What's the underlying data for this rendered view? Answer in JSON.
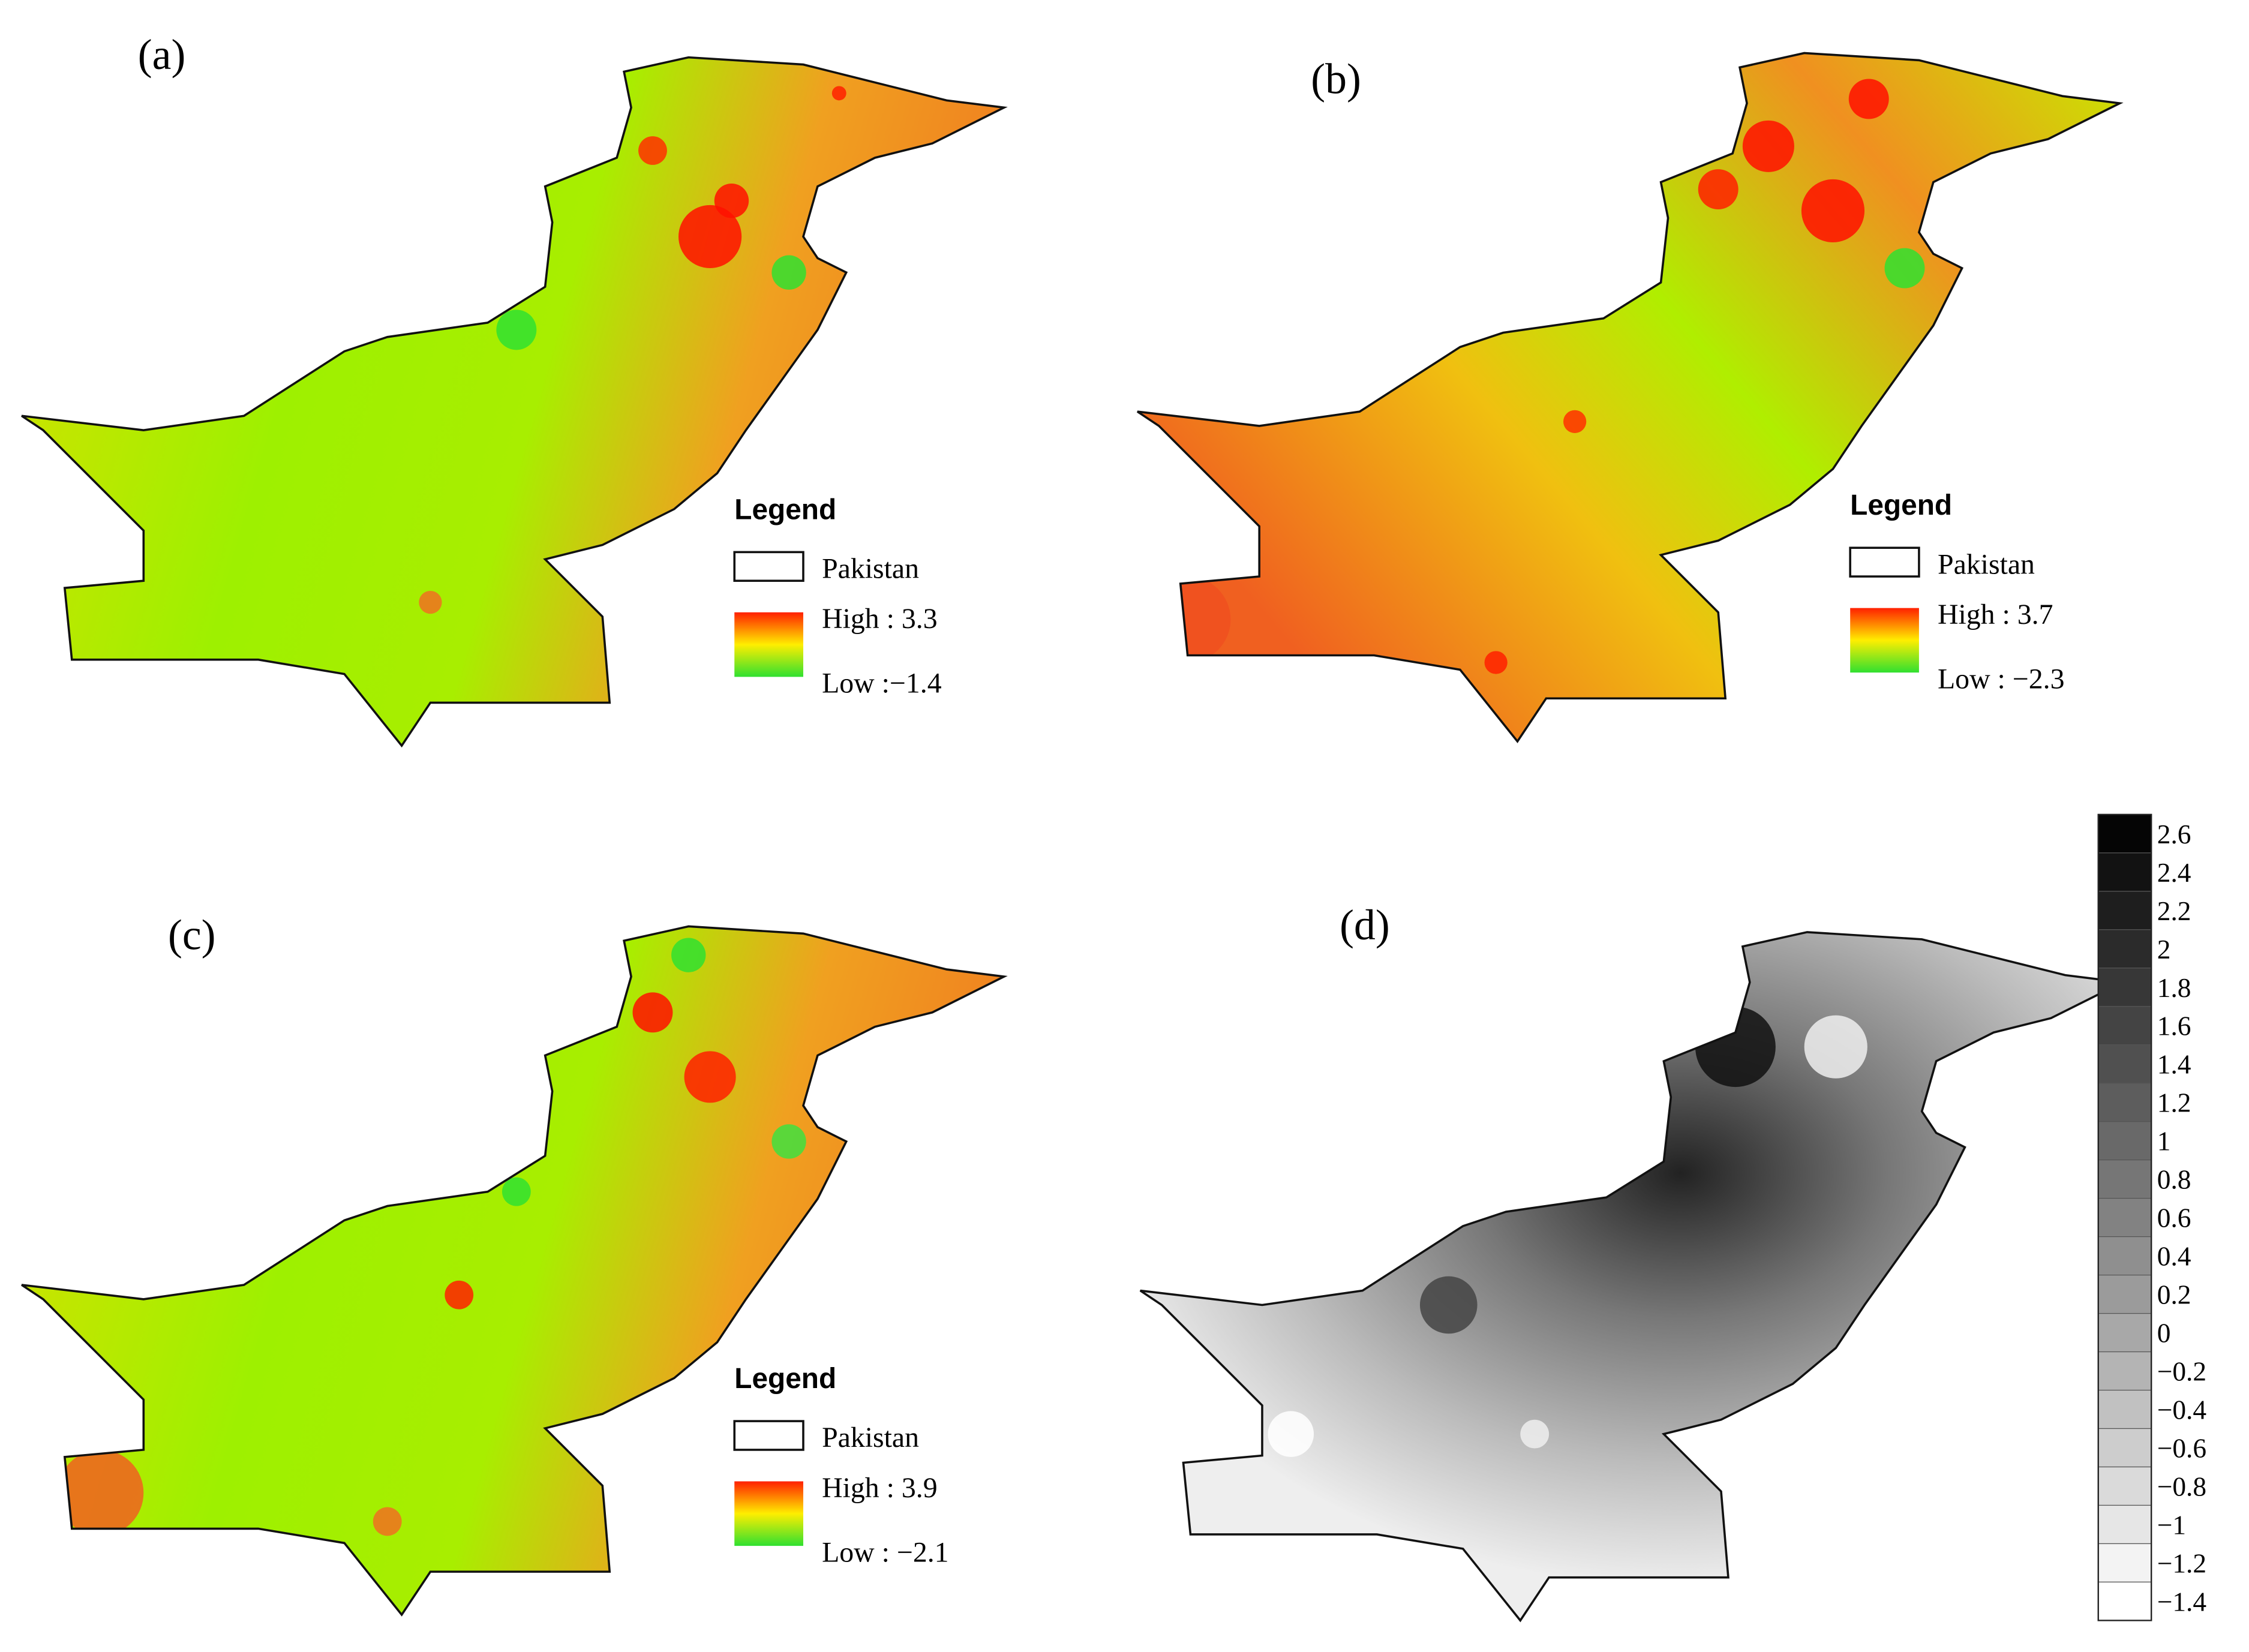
{
  "panels": [
    {
      "label": "(a)",
      "legend": {
        "title": "Legend",
        "boundary": "Pakistan",
        "high": "High :  3.3",
        "low": "Low :−1.4"
      }
    },
    {
      "label": "(b)",
      "legend": {
        "title": "Legend",
        "boundary": "Pakistan",
        "high": "High :  3.7",
        "low": "Low : −2.3"
      }
    },
    {
      "label": "(c)",
      "legend": {
        "title": "Legend",
        "boundary": "Pakistan",
        "high": "High :  3.9",
        "low": "Low : −2.1"
      }
    },
    {
      "label": "(d)"
    }
  ],
  "colorbar": {
    "ticks": [
      "2.6",
      "2.4",
      "2.2",
      "2",
      "1.8",
      "1.6",
      "1.4",
      "1.2",
      "1",
      "0.8",
      "0.6",
      "0.4",
      "0.2",
      "0",
      "−0.2",
      "−0.4",
      "−0.6",
      "−0.8",
      "−1",
      "−1.2",
      "−1.4"
    ]
  }
}
